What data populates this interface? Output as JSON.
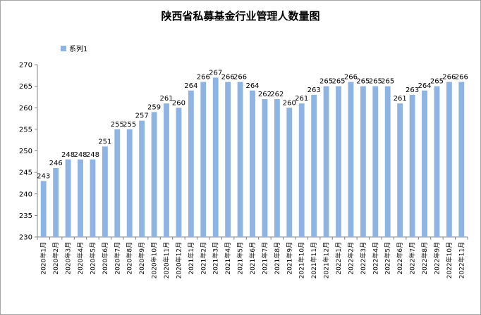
{
  "chart_data": {
    "type": "bar",
    "title": "陕西省私募基金行业管理人数量图",
    "legend": {
      "entries": [
        "系列1"
      ],
      "position": "top-left"
    },
    "ylim": [
      230,
      270
    ],
    "yticks": [
      230,
      235,
      240,
      245,
      250,
      255,
      260,
      265,
      270
    ],
    "grid": false,
    "bar_color": "#8db4e2",
    "categories": [
      "2020年1月",
      "2020年2月",
      "2020年3月",
      "2020年4月",
      "2020年5月",
      "2020年6月",
      "2020年7月",
      "2020年8月",
      "2020年9月",
      "2020年10月",
      "2020年11月",
      "2020年12月",
      "2021年1月",
      "2021年2月",
      "2021年3月",
      "2021年4月",
      "2021年5月",
      "2021年6月",
      "2021年7月",
      "2021年8月",
      "2021年9月",
      "2021年10月",
      "2021年11月",
      "2021年12月",
      "2022年1月",
      "2022年2月",
      "2022年3月",
      "2022年4月",
      "2022年5月",
      "2022年6月",
      "2022年7月",
      "2022年8月",
      "2022年9月",
      "2022年10月",
      "2022年11月"
    ],
    "series": [
      {
        "name": "系列1",
        "values": [
          243,
          246,
          248,
          248,
          248,
          251,
          255,
          255,
          257,
          259,
          261,
          260,
          264,
          266,
          267,
          266,
          266,
          264,
          262,
          262,
          260,
          261,
          263,
          265,
          265,
          266,
          265,
          265,
          265,
          261,
          263,
          264,
          265,
          266,
          266
        ]
      }
    ]
  }
}
